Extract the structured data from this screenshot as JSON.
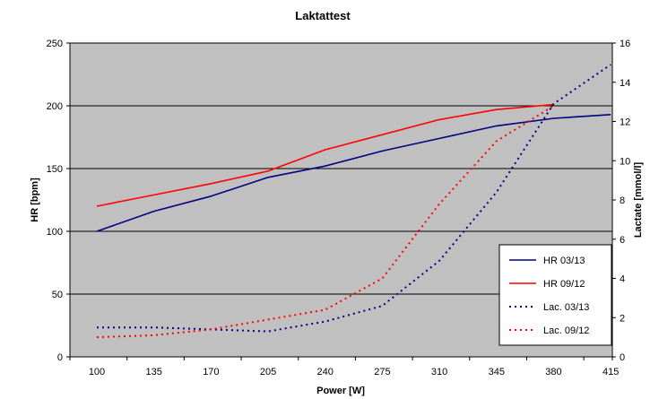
{
  "chart_data": {
    "type": "line",
    "title": "Laktattest",
    "xlabel": "Power [W]",
    "ylabel": "HR [bpm]",
    "y2label": "Lactate [mmol/l]",
    "categories": [
      "100",
      "135",
      "170",
      "205",
      "240",
      "275",
      "310",
      "345",
      "380",
      "415"
    ],
    "ylim": [
      0,
      250
    ],
    "y2lim": [
      0,
      16
    ],
    "yticks": [
      "0",
      "50",
      "100",
      "150",
      "200",
      "250"
    ],
    "y2ticks": [
      "0",
      "2",
      "4",
      "6",
      "8",
      "10",
      "12",
      "14",
      "16"
    ],
    "grid": "horizontal",
    "legend_position": "lower-right",
    "series": [
      {
        "name": "HR 03/13",
        "axis": "left",
        "style": "solid",
        "color": "#000080",
        "values": [
          100,
          116,
          128,
          143,
          152,
          164,
          174,
          184,
          190,
          193
        ]
      },
      {
        "name": "HR 09/12",
        "axis": "left",
        "style": "solid",
        "color": "#ff0000",
        "values": [
          120,
          129,
          138,
          148,
          165,
          177,
          189,
          197,
          201,
          null
        ]
      },
      {
        "name": "Lac. 03/13",
        "axis": "right",
        "style": "dotted",
        "color": "#000080",
        "values": [
          1.5,
          1.5,
          1.4,
          1.3,
          1.8,
          2.6,
          4.9,
          8.4,
          12.9,
          14.9
        ]
      },
      {
        "name": "Lac. 09/12",
        "axis": "right",
        "style": "dotted",
        "color": "#ff0000",
        "values": [
          1.0,
          1.1,
          1.4,
          1.9,
          2.4,
          4.0,
          7.8,
          11.0,
          12.8,
          null
        ]
      }
    ]
  }
}
